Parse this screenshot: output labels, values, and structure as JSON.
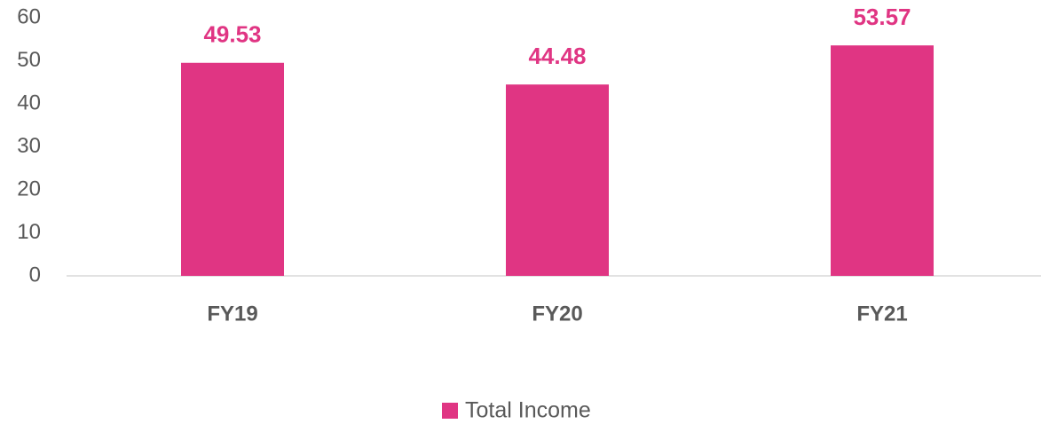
{
  "chart_data": {
    "type": "bar",
    "categories": [
      "FY19",
      "FY20",
      "FY21"
    ],
    "series": [
      {
        "name": "Total Income",
        "color": "#e03583",
        "values": [
          49.53,
          44.48,
          53.57
        ]
      }
    ],
    "ylim": [
      0,
      60
    ],
    "yticks": [
      0,
      10,
      20,
      30,
      40,
      50,
      60
    ],
    "grid": false,
    "legend": "bottom"
  }
}
